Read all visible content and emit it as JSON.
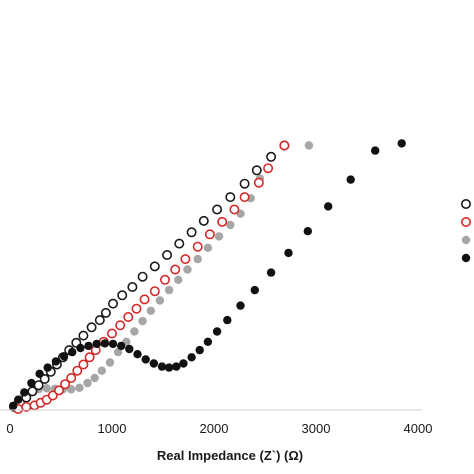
{
  "chart_data": {
    "type": "scatter",
    "title": "",
    "xlabel": "Real Impedance (Z`) (Ω)",
    "ylabel": "",
    "xlim": [
      0,
      4000
    ],
    "xticks": [
      0,
      1000,
      2000,
      3000,
      4000
    ],
    "xtick_labels": [
      "0",
      "1000",
      "2000",
      "3000",
      "4000"
    ],
    "ylim": [
      0,
      3000
    ],
    "grid": false,
    "legend": {
      "placement": "right, partially cropped",
      "entries": [
        {
          "series_index": 0,
          "label": ""
        },
        {
          "series_index": 1,
          "label": ""
        },
        {
          "series_index": 2,
          "label": ""
        },
        {
          "series_index": 3,
          "label": ""
        }
      ]
    },
    "series": [
      {
        "marker": "open-circle",
        "color": "#1a1a1a",
        "points": [
          [
            40,
            30
          ],
          [
            100,
            70
          ],
          [
            160,
            120
          ],
          [
            220,
            180
          ],
          [
            280,
            240
          ],
          [
            340,
            300
          ],
          [
            400,
            370
          ],
          [
            460,
            440
          ],
          [
            520,
            510
          ],
          [
            580,
            580
          ],
          [
            650,
            650
          ],
          [
            720,
            720
          ],
          [
            800,
            800
          ],
          [
            880,
            870
          ],
          [
            940,
            940
          ],
          [
            1010,
            1030
          ],
          [
            1100,
            1110
          ],
          [
            1200,
            1190
          ],
          [
            1300,
            1290
          ],
          [
            1420,
            1390
          ],
          [
            1540,
            1500
          ],
          [
            1660,
            1610
          ],
          [
            1780,
            1720
          ],
          [
            1900,
            1830
          ],
          [
            2030,
            1940
          ],
          [
            2160,
            2060
          ],
          [
            2300,
            2190
          ],
          [
            2420,
            2320
          ],
          [
            2560,
            2450
          ],
          [
            2690,
            2560
          ]
        ]
      },
      {
        "marker": "open-circle",
        "color": "#d42a2a",
        "points": [
          [
            80,
            10
          ],
          [
            160,
            30
          ],
          [
            240,
            45
          ],
          [
            300,
            70
          ],
          [
            360,
            100
          ],
          [
            420,
            140
          ],
          [
            480,
            190
          ],
          [
            540,
            250
          ],
          [
            600,
            310
          ],
          [
            660,
            380
          ],
          [
            720,
            440
          ],
          [
            780,
            510
          ],
          [
            840,
            580
          ],
          [
            920,
            660
          ],
          [
            1000,
            740
          ],
          [
            1080,
            820
          ],
          [
            1160,
            900
          ],
          [
            1240,
            980
          ],
          [
            1320,
            1070
          ],
          [
            1420,
            1150
          ],
          [
            1520,
            1260
          ],
          [
            1620,
            1360
          ],
          [
            1720,
            1460
          ],
          [
            1840,
            1580
          ],
          [
            1960,
            1700
          ],
          [
            2080,
            1820
          ],
          [
            2200,
            1940
          ],
          [
            2300,
            2060
          ],
          [
            2440,
            2200
          ],
          [
            2530,
            2340
          ],
          [
            2690,
            2560
          ]
        ]
      },
      {
        "marker": "filled-circle",
        "color": "#a6a6a6",
        "points": [
          [
            60,
            60
          ],
          [
            130,
            120
          ],
          [
            200,
            170
          ],
          [
            280,
            200
          ],
          [
            360,
            210
          ],
          [
            440,
            205
          ],
          [
            520,
            200
          ],
          [
            600,
            200
          ],
          [
            680,
            215
          ],
          [
            760,
            260
          ],
          [
            830,
            310
          ],
          [
            900,
            380
          ],
          [
            980,
            460
          ],
          [
            1060,
            560
          ],
          [
            1140,
            660
          ],
          [
            1220,
            760
          ],
          [
            1300,
            860
          ],
          [
            1380,
            960
          ],
          [
            1470,
            1060
          ],
          [
            1560,
            1160
          ],
          [
            1650,
            1260
          ],
          [
            1740,
            1360
          ],
          [
            1840,
            1460
          ],
          [
            1940,
            1570
          ],
          [
            2050,
            1680
          ],
          [
            2160,
            1790
          ],
          [
            2260,
            1900
          ],
          [
            2360,
            2050
          ],
          [
            2450,
            2240
          ],
          [
            2930,
            2560
          ]
        ]
      },
      {
        "marker": "filled-circle",
        "color": "#111111",
        "points": [
          [
            30,
            40
          ],
          [
            80,
            100
          ],
          [
            140,
            170
          ],
          [
            210,
            260
          ],
          [
            290,
            350
          ],
          [
            370,
            410
          ],
          [
            450,
            470
          ],
          [
            530,
            520
          ],
          [
            610,
            560
          ],
          [
            690,
            600
          ],
          [
            770,
            620
          ],
          [
            850,
            640
          ],
          [
            930,
            645
          ],
          [
            1010,
            640
          ],
          [
            1090,
            620
          ],
          [
            1170,
            590
          ],
          [
            1250,
            540
          ],
          [
            1330,
            490
          ],
          [
            1410,
            450
          ],
          [
            1490,
            420
          ],
          [
            1560,
            410
          ],
          [
            1630,
            420
          ],
          [
            1700,
            450
          ],
          [
            1780,
            510
          ],
          [
            1860,
            580
          ],
          [
            1940,
            660
          ],
          [
            2030,
            760
          ],
          [
            2130,
            870
          ],
          [
            2260,
            1010
          ],
          [
            2400,
            1160
          ],
          [
            2560,
            1330
          ],
          [
            2730,
            1520
          ],
          [
            2920,
            1730
          ],
          [
            3120,
            1970
          ],
          [
            3340,
            2230
          ],
          [
            3580,
            2510
          ],
          [
            3840,
            2580
          ]
        ]
      }
    ]
  }
}
